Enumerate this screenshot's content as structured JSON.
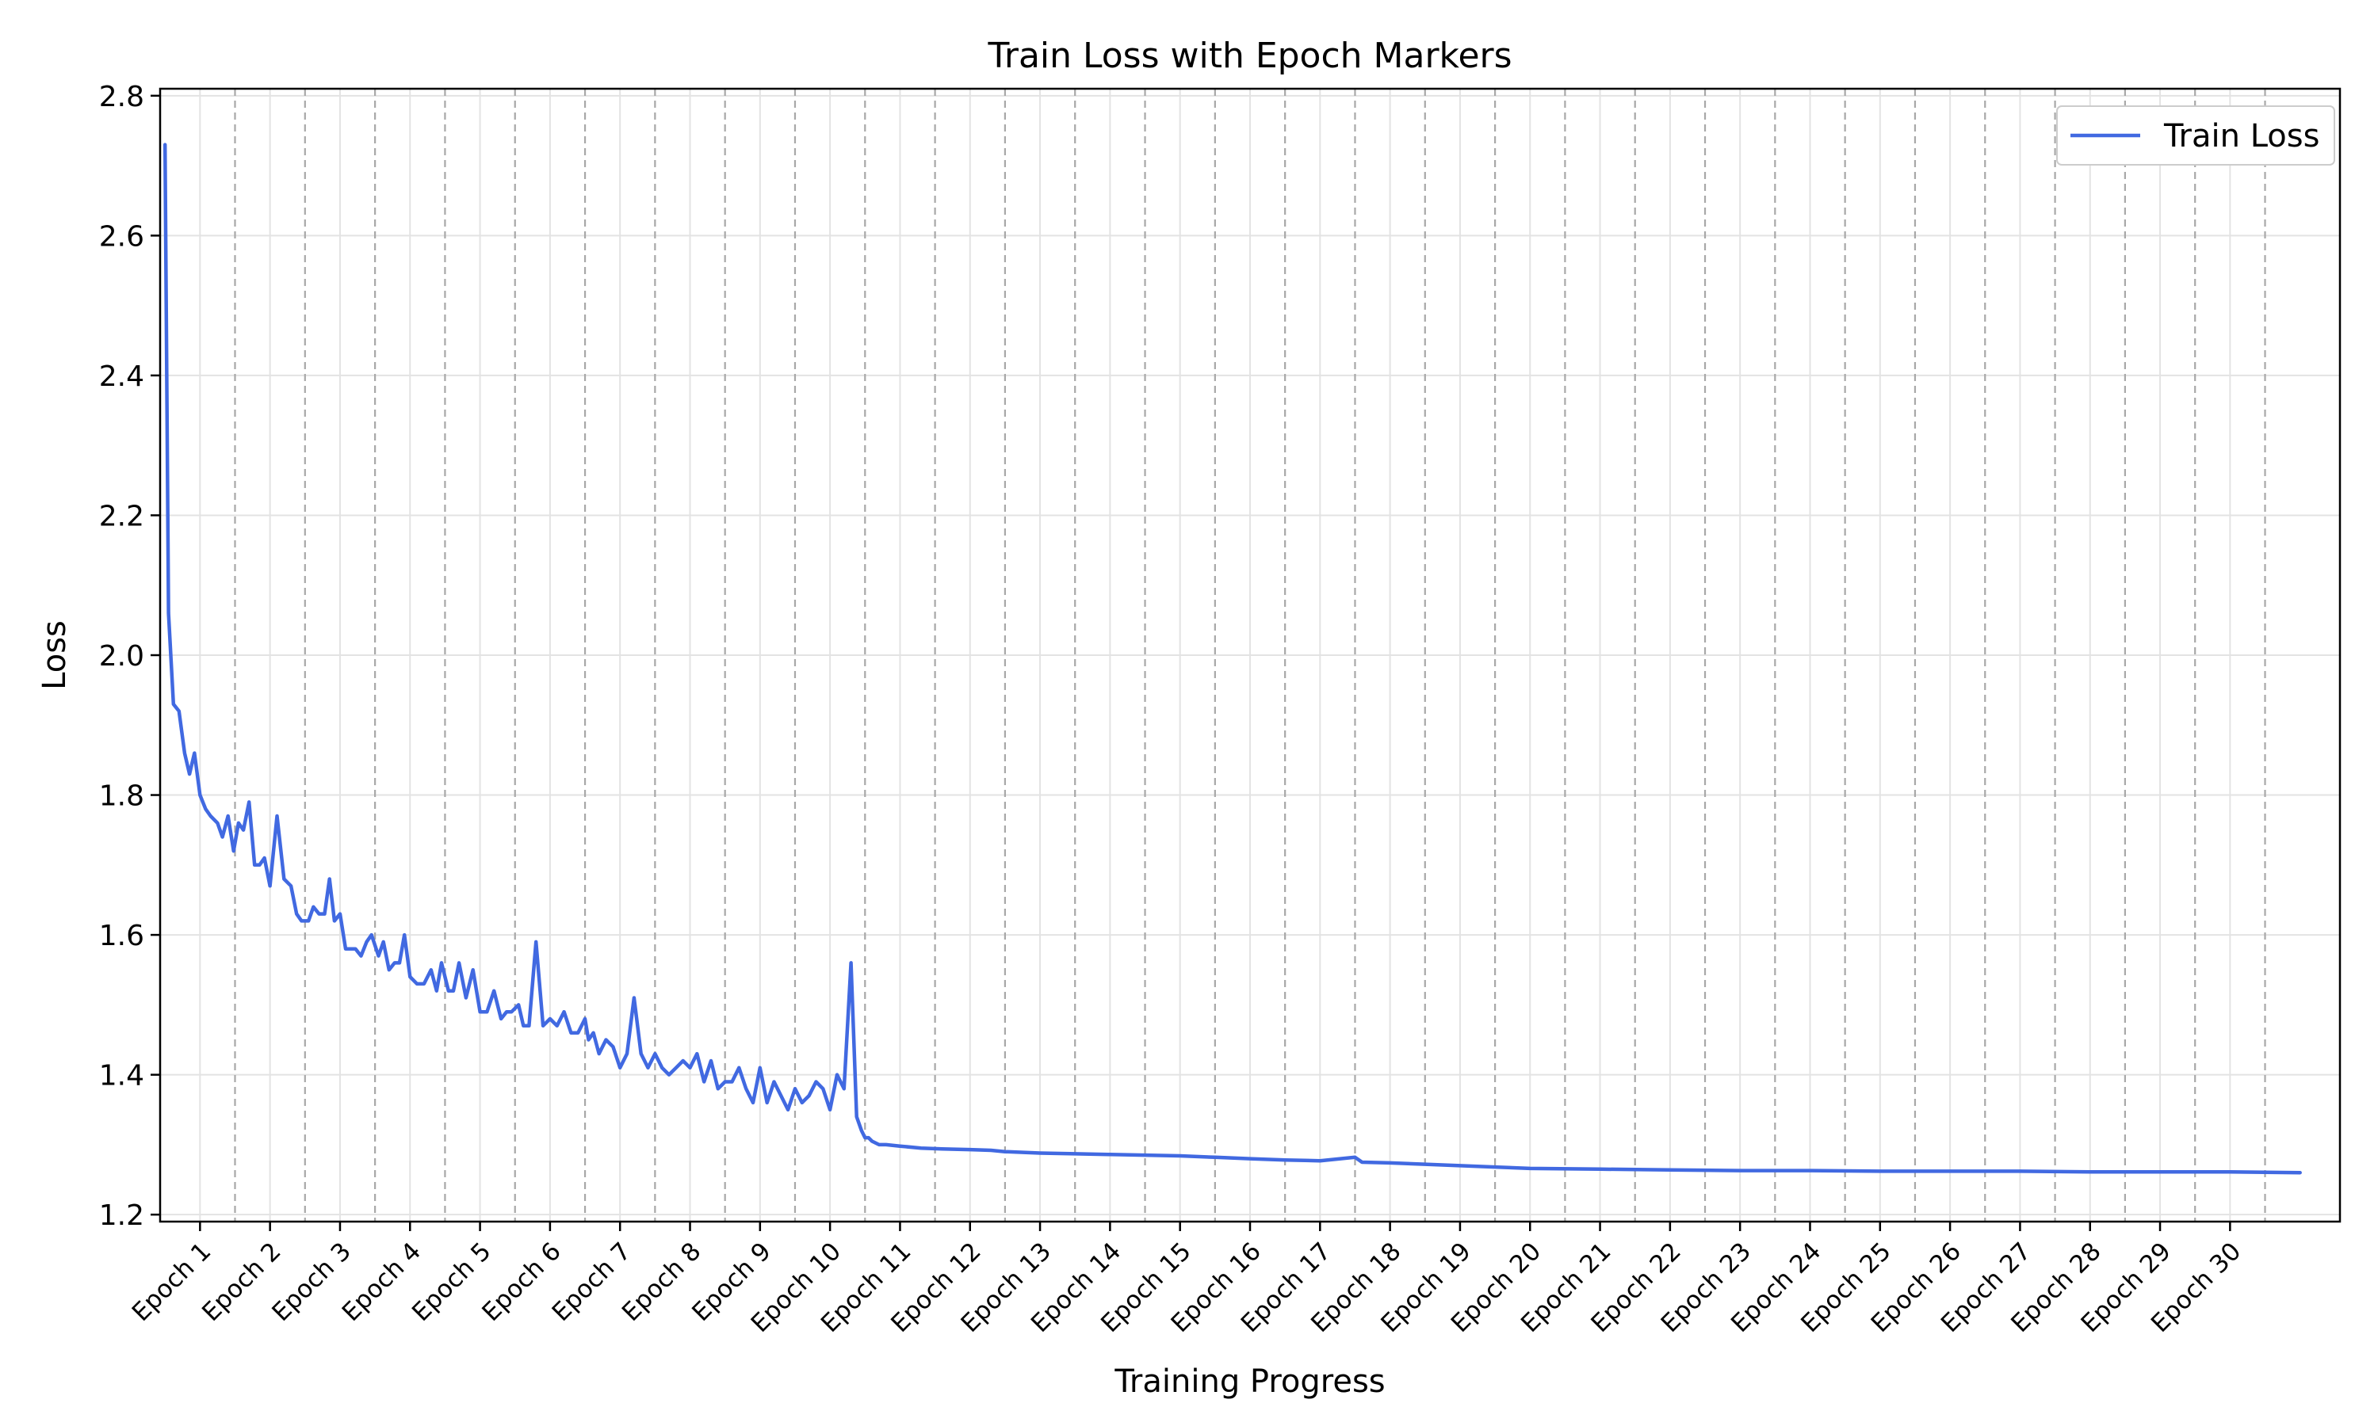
{
  "chart_data": {
    "type": "line",
    "title": "Train Loss with Epoch Markers",
    "xlabel": "Training Progress",
    "ylabel": "Loss",
    "ylim": [
      1.19,
      2.81
    ],
    "y_ticks": [
      "1.2",
      "1.4",
      "1.6",
      "1.8",
      "2.0",
      "2.2",
      "2.4",
      "2.6",
      "2.8"
    ],
    "x_tick_labels": [
      "Epoch 1",
      "Epoch 2",
      "Epoch 3",
      "Epoch 4",
      "Epoch 5",
      "Epoch 6",
      "Epoch 7",
      "Epoch 8",
      "Epoch 9",
      "Epoch 10",
      "Epoch 11",
      "Epoch 12",
      "Epoch 13",
      "Epoch 14",
      "Epoch 15",
      "Epoch 16",
      "Epoch 17",
      "Epoch 18",
      "Epoch 19",
      "Epoch 20",
      "Epoch 21",
      "Epoch 22",
      "Epoch 23",
      "Epoch 24",
      "Epoch 25",
      "Epoch 26",
      "Epoch 27",
      "Epoch 28",
      "Epoch 29",
      "Epoch 30"
    ],
    "xlim": [
      -0.57,
      30.57
    ],
    "epoch_boundaries": [
      0.5,
      1.5,
      2.5,
      3.5,
      4.5,
      5.5,
      6.5,
      7.5,
      8.5,
      9.5,
      10.5,
      11.5,
      12.5,
      13.5,
      14.5,
      15.5,
      16.5,
      17.5,
      18.5,
      19.5,
      20.5,
      21.5,
      22.5,
      23.5,
      24.5,
      25.5,
      26.5,
      27.5,
      28.5,
      29.5
    ],
    "grid": true,
    "legend_position": "top-right",
    "series": [
      {
        "name": "Train Loss",
        "color": "#4169e1",
        "x": [
          -0.5,
          -0.45,
          -0.38,
          -0.3,
          -0.22,
          -0.15,
          -0.08,
          0.0,
          0.08,
          0.15,
          0.25,
          0.32,
          0.4,
          0.48,
          0.55,
          0.62,
          0.7,
          0.78,
          0.85,
          0.92,
          1.0,
          1.1,
          1.2,
          1.3,
          1.38,
          1.45,
          1.55,
          1.62,
          1.7,
          1.78,
          1.85,
          1.92,
          2.0,
          2.08,
          2.15,
          2.22,
          2.3,
          2.38,
          2.45,
          2.55,
          2.62,
          2.7,
          2.78,
          2.85,
          2.92,
          3.0,
          3.1,
          3.2,
          3.3,
          3.38,
          3.45,
          3.55,
          3.62,
          3.7,
          3.8,
          3.9,
          4.0,
          4.1,
          4.2,
          4.3,
          4.38,
          4.45,
          4.55,
          4.62,
          4.7,
          4.8,
          4.9,
          5.0,
          5.1,
          5.2,
          5.3,
          5.4,
          5.5,
          5.55,
          5.62,
          5.7,
          5.8,
          5.9,
          6.0,
          6.1,
          6.2,
          6.3,
          6.4,
          6.5,
          6.6,
          6.7,
          6.8,
          6.9,
          7.0,
          7.1,
          7.2,
          7.3,
          7.4,
          7.5,
          7.6,
          7.7,
          7.8,
          7.9,
          8.0,
          8.1,
          8.2,
          8.3,
          8.4,
          8.5,
          8.6,
          8.7,
          8.8,
          8.9,
          9.0,
          9.1,
          9.2,
          9.3,
          9.38,
          9.45,
          9.5,
          9.55,
          9.6,
          9.7,
          9.8,
          10.0,
          10.3,
          10.6,
          11.0,
          11.3,
          11.5,
          12.0,
          12.5,
          13.0,
          13.5,
          14.0,
          14.5,
          15.0,
          15.5,
          16.0,
          16.5,
          16.6,
          17.0,
          17.5,
          18.0,
          18.5,
          19.0,
          20.0,
          21.0,
          22.0,
          23.0,
          24.0,
          25.0,
          26.0,
          27.0,
          28.0,
          29.0,
          30.0
        ],
        "values": [
          2.73,
          2.06,
          1.93,
          1.92,
          1.86,
          1.83,
          1.86,
          1.8,
          1.78,
          1.77,
          1.76,
          1.74,
          1.77,
          1.72,
          1.76,
          1.75,
          1.79,
          1.7,
          1.7,
          1.71,
          1.67,
          1.77,
          1.68,
          1.67,
          1.63,
          1.62,
          1.62,
          1.64,
          1.63,
          1.63,
          1.68,
          1.62,
          1.63,
          1.58,
          1.58,
          1.58,
          1.57,
          1.59,
          1.6,
          1.57,
          1.59,
          1.55,
          1.56,
          1.56,
          1.6,
          1.54,
          1.53,
          1.53,
          1.55,
          1.52,
          1.56,
          1.52,
          1.52,
          1.56,
          1.51,
          1.55,
          1.49,
          1.49,
          1.52,
          1.48,
          1.49,
          1.49,
          1.5,
          1.47,
          1.47,
          1.59,
          1.47,
          1.48,
          1.47,
          1.49,
          1.46,
          1.46,
          1.48,
          1.45,
          1.46,
          1.43,
          1.45,
          1.44,
          1.41,
          1.43,
          1.51,
          1.43,
          1.41,
          1.43,
          1.41,
          1.4,
          1.41,
          1.42,
          1.41,
          1.43,
          1.39,
          1.42,
          1.38,
          1.39,
          1.39,
          1.41,
          1.38,
          1.36,
          1.41,
          1.36,
          1.39,
          1.37,
          1.35,
          1.38,
          1.36,
          1.37,
          1.39,
          1.38,
          1.35,
          1.4,
          1.38,
          1.56,
          1.34,
          1.32,
          1.31,
          1.31,
          1.305,
          1.3,
          1.3,
          1.298,
          1.295,
          1.294,
          1.293,
          1.292,
          1.29,
          1.288,
          1.287,
          1.286,
          1.285,
          1.284,
          1.282,
          1.28,
          1.278,
          1.277,
          1.282,
          1.275,
          1.274,
          1.272,
          1.27,
          1.268,
          1.266,
          1.265,
          1.264,
          1.263,
          1.263,
          1.262,
          1.262,
          1.262,
          1.261,
          1.261,
          1.261,
          1.26
        ]
      }
    ]
  }
}
